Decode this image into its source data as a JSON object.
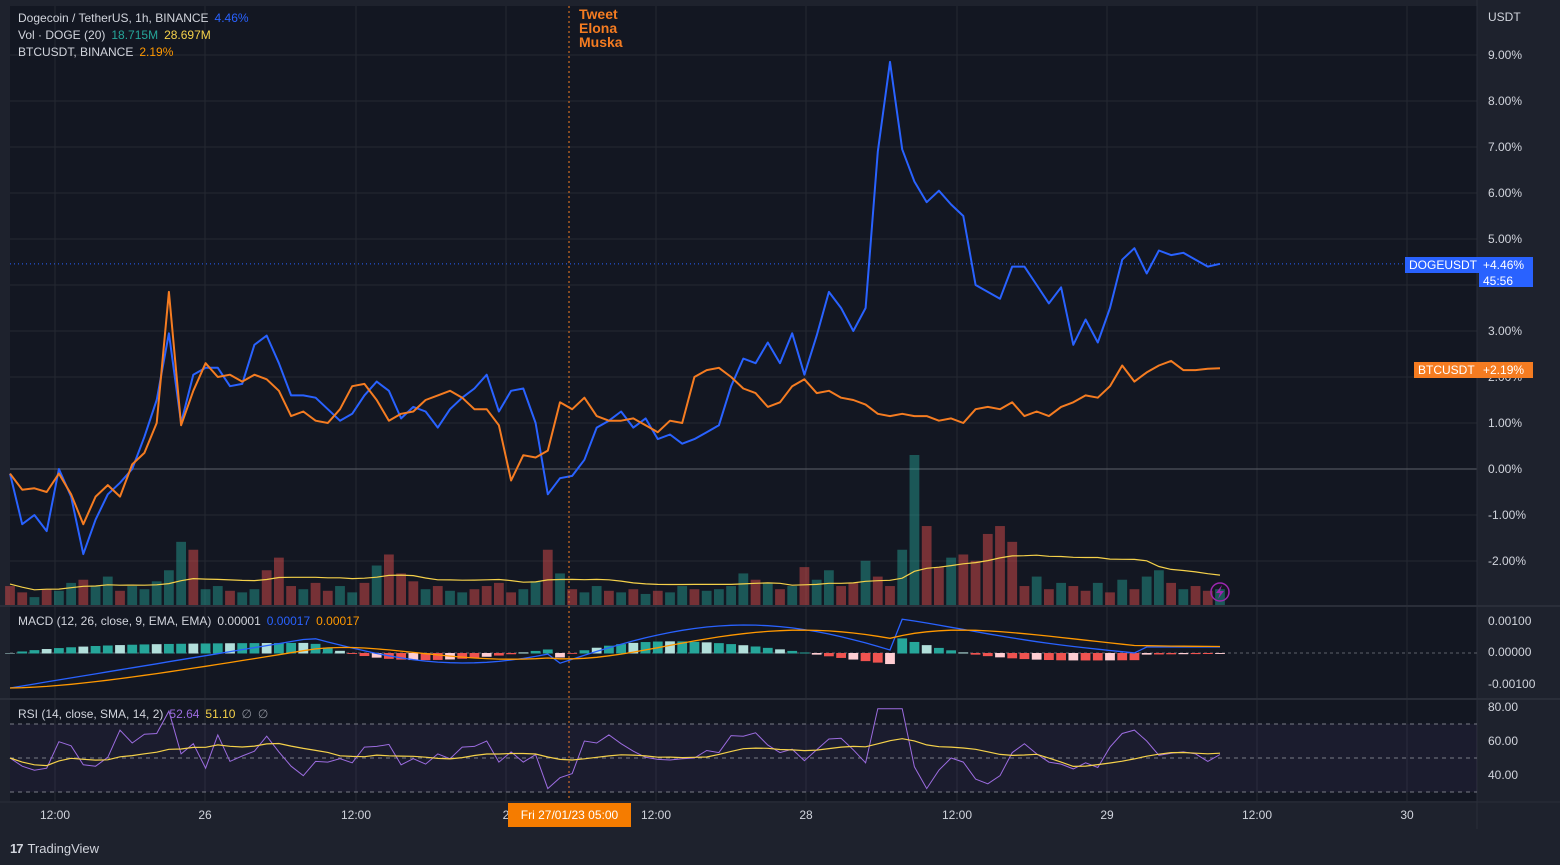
{
  "legend": {
    "title": "Dogecoin / TetherUS, 1h, BINANCE",
    "doge_change": "4.46%",
    "vol_label": "Vol · DOGE (20)",
    "vol_value": "18.715M",
    "vol_ma": "28.697M",
    "btc_label": "BTCUSDT, BINANCE",
    "btc_change": "2.19%",
    "macd_label": "MACD (12, 26, close, 9, EMA, EMA)",
    "macd_hist": "0.00001",
    "macd_line": "0.00017",
    "macd_signal": "0.00017",
    "rsi_label": "RSI (14, close, SMA, 14, 2)",
    "rsi_value": "52.64",
    "rsi_ma": "51.10",
    "rsi_extra1": "∅",
    "rsi_extra2": "∅"
  },
  "annotation": {
    "lines": [
      "Tweet",
      "Elona",
      "Muska"
    ]
  },
  "badges": {
    "doge_name": "DOGEUSDT",
    "doge_value": "+4.46%",
    "doge_countdown": "45:56",
    "btc_name": "BTCUSDT",
    "btc_value": "+2.19%"
  },
  "crosshair_time": "Fri 27/01/23   05:00",
  "footer": {
    "brand": "TradingView",
    "icon": "tradingview-logo-icon"
  },
  "colors": {
    "doge": "#2962ff",
    "btc": "#f57c21",
    "up_volume": "#26a69a",
    "down_volume": "#ef5350",
    "volume_ma": "#f5d14a",
    "rsi": "#9c6ce0",
    "rsi_ma": "#f5d14a",
    "macd": "#2962ff",
    "signal": "#ff9800",
    "background": "#131722"
  },
  "chart_data": {
    "type": "line",
    "price_scale_unit": "USDT",
    "x_axis_ticks": [
      "12:00",
      "26",
      "12:00",
      "2",
      "12:00",
      "28",
      "12:00",
      "29",
      "12:00",
      "30"
    ],
    "y_axis_ticks": [
      "9.00%",
      "8.00%",
      "7.00%",
      "6.00%",
      "5.00%",
      "3.00%",
      "2.00%",
      "1.00%",
      "0.00%",
      "-1.00%",
      "-2.00%"
    ],
    "ylim": [
      -3,
      9.3
    ],
    "series": [
      {
        "name": "DOGEUSDT",
        "values": [
          -0.1,
          -1.2,
          -1.0,
          -1.35,
          0.0,
          -0.6,
          -1.85,
          -1.1,
          -0.55,
          -0.3,
          0.0,
          0.7,
          1.5,
          2.95,
          1.0,
          2.05,
          2.2,
          2.2,
          1.8,
          1.85,
          2.7,
          2.9,
          2.3,
          1.6,
          1.6,
          1.55,
          1.3,
          1.05,
          1.2,
          1.6,
          1.9,
          1.7,
          1.1,
          1.35,
          1.25,
          0.9,
          1.3,
          1.55,
          1.75,
          2.05,
          1.25,
          1.7,
          1.75,
          1.0,
          -0.55,
          -0.2,
          -0.15,
          0.2,
          0.9,
          1.05,
          1.25,
          0.9,
          1.1,
          0.65,
          0.75,
          0.55,
          0.65,
          0.8,
          0.95,
          1.8,
          2.4,
          2.3,
          2.75,
          2.3,
          2.95,
          2.05,
          2.9,
          3.85,
          3.5,
          3.0,
          3.5,
          6.9,
          8.85,
          6.95,
          6.25,
          5.8,
          6.05,
          5.75,
          5.5,
          4.0,
          3.85,
          3.7,
          4.4,
          4.4,
          4.0,
          3.6,
          3.95,
          2.7,
          3.25,
          2.75,
          3.5,
          4.55,
          4.8,
          4.25,
          4.75,
          4.65,
          4.7,
          4.55,
          4.4,
          4.46
        ]
      },
      {
        "name": "BTCUSDT",
        "values": [
          -0.1,
          -0.45,
          -0.42,
          -0.5,
          -0.1,
          -0.55,
          -1.2,
          -0.6,
          -0.35,
          -0.6,
          0.1,
          0.35,
          1.0,
          3.85,
          0.95,
          1.7,
          2.3,
          2.0,
          2.05,
          1.9,
          2.05,
          1.95,
          1.7,
          1.15,
          1.25,
          1.05,
          1.0,
          1.3,
          1.8,
          1.85,
          1.5,
          1.05,
          1.2,
          1.25,
          1.5,
          1.6,
          1.7,
          1.55,
          1.3,
          1.3,
          0.95,
          -0.25,
          0.3,
          0.25,
          0.4,
          1.45,
          1.3,
          1.55,
          1.15,
          1.05,
          1.05,
          1.1,
          0.95,
          0.8,
          1.05,
          1.0,
          2.0,
          2.15,
          2.2,
          2.0,
          1.75,
          1.65,
          1.35,
          1.45,
          1.8,
          1.95,
          1.65,
          1.7,
          1.55,
          1.5,
          1.4,
          1.2,
          1.15,
          1.2,
          1.15,
          1.15,
          1.05,
          1.1,
          1.0,
          1.3,
          1.35,
          1.3,
          1.45,
          1.15,
          1.25,
          1.15,
          1.35,
          1.45,
          1.6,
          1.55,
          1.8,
          2.25,
          1.9,
          2.1,
          2.25,
          2.35,
          2.15,
          2.15,
          2.18,
          2.19
        ]
      }
    ],
    "volume": {
      "values": [
        12,
        8,
        5,
        10,
        9,
        14,
        16,
        12,
        18,
        9,
        12,
        10,
        15,
        22,
        40,
        35,
        10,
        12,
        9,
        8,
        10,
        22,
        30,
        12,
        10,
        14,
        9,
        12,
        8,
        14,
        25,
        32,
        20,
        15,
        10,
        12,
        9,
        8,
        10,
        12,
        14,
        8,
        10,
        15,
        35,
        20,
        10,
        8,
        12,
        9,
        8,
        10,
        7,
        9,
        8,
        12,
        10,
        9,
        10,
        12,
        20,
        16,
        14,
        10,
        12,
        24,
        16,
        22,
        12,
        14,
        28,
        18,
        12,
        35,
        95,
        50,
        24,
        30,
        32,
        28,
        45,
        50,
        40,
        12,
        18,
        10,
        14,
        12,
        9,
        14,
        8,
        16,
        10,
        18,
        22,
        14,
        10,
        12,
        9,
        10
      ],
      "direction": [
        "d",
        "d",
        "u",
        "d",
        "u",
        "u",
        "d",
        "u",
        "u",
        "d",
        "u",
        "u",
        "u",
        "u",
        "u",
        "d",
        "u",
        "u",
        "d",
        "u",
        "u",
        "d",
        "d",
        "d",
        "u",
        "d",
        "d",
        "u",
        "u",
        "d",
        "u",
        "d",
        "d",
        "d",
        "u",
        "d",
        "u",
        "u",
        "d",
        "d",
        "d",
        "d",
        "u",
        "u",
        "d",
        "u",
        "d",
        "u",
        "u",
        "d",
        "u",
        "d",
        "u",
        "d",
        "u",
        "u",
        "d",
        "u",
        "u",
        "u",
        "u",
        "d",
        "u",
        "d",
        "u",
        "d",
        "u",
        "u",
        "d",
        "d",
        "u",
        "d",
        "d",
        "u",
        "u",
        "d",
        "d",
        "u",
        "d",
        "d",
        "d",
        "d",
        "d",
        "d",
        "u",
        "d",
        "u",
        "d",
        "d",
        "u",
        "d",
        "u",
        "d",
        "u",
        "u",
        "d",
        "u",
        "d",
        "d",
        "u"
      ]
    },
    "macd_ticks": [
      "0.00100",
      "0.00000",
      "-0.00100"
    ],
    "rsi_ticks": [
      "80.00",
      "60.00",
      "40.00"
    ],
    "rsi_bands": [
      70,
      50,
      30
    ]
  }
}
